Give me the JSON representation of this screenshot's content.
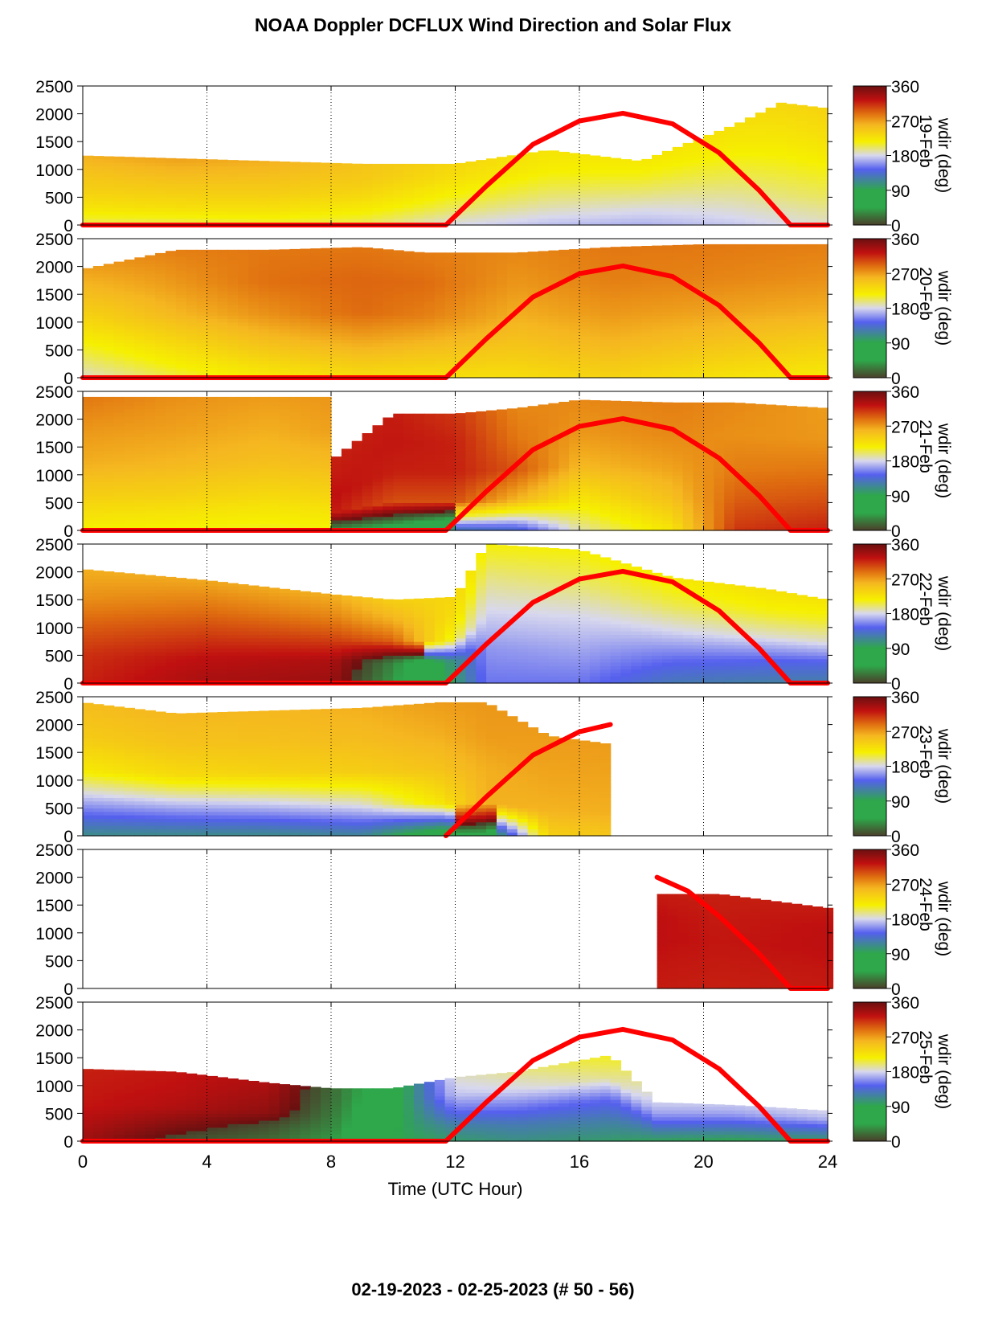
{
  "title": "NOAA Doppler DCFLUX Wind Direction and Solar Flux",
  "footer": "02-19-2023 - 02-25-2023   (# 50 - 56)",
  "chart_data": {
    "type": "heatmap",
    "xlabel": "Time (UTC Hour)",
    "xlim": [
      0,
      24
    ],
    "xticks": [
      0,
      4,
      8,
      12,
      16,
      20,
      24
    ],
    "ylim": [
      0,
      2500
    ],
    "yticks": [
      0,
      500,
      1000,
      1500,
      2000,
      2500
    ],
    "grid": "vertical dotted lines at 4, 8, 12, 16, 20",
    "colorbar": {
      "label": "wdir (deg)",
      "ticks": [
        0,
        90,
        180,
        270,
        360
      ],
      "colors": [
        "#4a3f2a",
        "#2ea84a",
        "#5560ee",
        "#d8d8ee",
        "#f6f000",
        "#f5b720",
        "#e07010",
        "#c01010",
        "#6a1010"
      ]
    },
    "solar_flux_color": "#ff0000",
    "panels": [
      {
        "date": "19-Feb",
        "data_range": [
          0,
          24
        ],
        "solar_curve": [
          [
            0,
            0
          ],
          [
            11.7,
            0
          ],
          [
            13,
            700
          ],
          [
            14.5,
            1450
          ],
          [
            16,
            1870
          ],
          [
            17.4,
            2010
          ],
          [
            19,
            1820
          ],
          [
            20.5,
            1300
          ],
          [
            21.8,
            620
          ],
          [
            22.8,
            0
          ],
          [
            24,
            0
          ]
        ],
        "profile": [
          {
            "t": 0,
            "top": 1250,
            "dirs": [
              200,
              225,
              240,
              250,
              262
            ]
          },
          {
            "t": 3,
            "top": 1200,
            "dirs": [
              200,
              228,
              242,
              255,
              268
            ]
          },
          {
            "t": 6,
            "top": 1150,
            "dirs": [
              205,
              228,
              242,
              252,
              262
            ]
          },
          {
            "t": 9,
            "top": 1100,
            "dirs": [
              200,
              220,
              235,
              245,
              250
            ]
          },
          {
            "t": 12,
            "top": 1100,
            "dirs": [
              180,
              200,
              215,
              228,
              235
            ]
          },
          {
            "t": 15,
            "top": 1350,
            "dirs": [
              172,
              190,
              205,
              218,
              225
            ]
          },
          {
            "t": 18,
            "top": 1150,
            "dirs": [
              168,
              182,
              198,
              212,
              222
            ]
          },
          {
            "t": 21,
            "top": 1800,
            "dirs": [
              175,
              190,
              205,
              218,
              228
            ]
          },
          {
            "t": 22.5,
            "top": 2200,
            "dirs": [
              180,
              198,
              212,
              225,
              235
            ]
          },
          {
            "t": 24,
            "top": 2100,
            "dirs": [
              185,
              202,
              215,
              228,
              238
            ]
          }
        ]
      },
      {
        "date": "20-Feb",
        "data_range": [
          0,
          24
        ],
        "solar_curve": [
          [
            0,
            0
          ],
          [
            11.7,
            0
          ],
          [
            13,
            700
          ],
          [
            14.5,
            1450
          ],
          [
            16,
            1870
          ],
          [
            17.4,
            2010
          ],
          [
            19,
            1820
          ],
          [
            20.5,
            1300
          ],
          [
            21.8,
            620
          ],
          [
            22.8,
            0
          ],
          [
            24,
            0
          ]
        ],
        "profile": [
          {
            "t": 0,
            "top": 1950,
            "dirs": [
              185,
              208,
              232,
              252,
              268
            ]
          },
          {
            "t": 3,
            "top": 2300,
            "dirs": [
              205,
              232,
              258,
              272,
              282
            ]
          },
          {
            "t": 6,
            "top": 2300,
            "dirs": [
              220,
              250,
              275,
              288,
              285
            ]
          },
          {
            "t": 9,
            "top": 2350,
            "dirs": [
              230,
              262,
              290,
              292,
              285
            ]
          },
          {
            "t": 11,
            "top": 2250,
            "dirs": [
              228,
              255,
              282,
              290,
              283
            ]
          },
          {
            "t": 14,
            "top": 2250,
            "dirs": [
              230,
              248,
              262,
              272,
              278
            ]
          },
          {
            "t": 17,
            "top": 2350,
            "dirs": [
              238,
              258,
              272,
              282,
              285
            ]
          },
          {
            "t": 20,
            "top": 2400,
            "dirs": [
              228,
              250,
              268,
              280,
              285
            ]
          },
          {
            "t": 24,
            "top": 2400,
            "dirs": [
              220,
              240,
              262,
              275,
              282
            ]
          }
        ]
      },
      {
        "date": "21-Feb",
        "data_range": [
          0,
          24
        ],
        "solar_curve": [
          [
            0,
            0
          ],
          [
            11.7,
            0
          ],
          [
            13,
            700
          ],
          [
            14.5,
            1450
          ],
          [
            16,
            1870
          ],
          [
            17.4,
            2010
          ],
          [
            19,
            1820
          ],
          [
            20.5,
            1300
          ],
          [
            21.8,
            620
          ],
          [
            22.8,
            0
          ],
          [
            24,
            0
          ]
        ],
        "profile": [
          {
            "t": 0,
            "top": 2400,
            "dirs": [
              215,
              240,
              262,
              272,
              285
            ]
          },
          {
            "t": 3,
            "top": 2400,
            "dirs": [
              212,
              238,
              258,
              268,
              275
            ]
          },
          {
            "t": 6,
            "top": 2400,
            "dirs": [
              210,
              232,
              252,
              262,
              270
            ]
          },
          {
            "t": 7.9,
            "top": 2400,
            "dirs": [
              212,
              235,
              255,
              268,
              272
            ]
          },
          {
            "t": 8.1,
            "top": 1300,
            "dirs": [
              40,
              320,
              325,
              320,
              318
            ]
          },
          {
            "t": 10,
            "top": 2100,
            "dirs": [
              70,
              300,
              318,
              322,
              320
            ]
          },
          {
            "t": 12,
            "top": 2100,
            "dirs": [
              120,
              300,
              318,
              318,
              310
            ]
          },
          {
            "t": 14,
            "top": 2200,
            "dirs": [
              130,
              258,
              298,
              285,
              278
            ]
          },
          {
            "t": 16,
            "top": 2350,
            "dirs": [
              190,
              225,
              258,
              272,
              278
            ]
          },
          {
            "t": 19,
            "top": 2300,
            "dirs": [
              225,
              252,
              268,
              278,
              282
            ]
          },
          {
            "t": 21,
            "top": 2300,
            "dirs": [
              310,
              295,
              282,
              275,
              278
            ]
          },
          {
            "t": 24,
            "top": 2200,
            "dirs": [
              318,
              300,
              285,
              272,
              270
            ]
          }
        ]
      },
      {
        "date": "22-Feb",
        "data_range": [
          0,
          24
        ],
        "solar_curve": [
          [
            0,
            0
          ],
          [
            11.7,
            0
          ],
          [
            13,
            700
          ],
          [
            14.5,
            1450
          ],
          [
            16,
            1870
          ],
          [
            17.4,
            2010
          ],
          [
            19,
            1820
          ],
          [
            20.5,
            1300
          ],
          [
            21.8,
            620
          ],
          [
            22.8,
            0
          ],
          [
            24,
            0
          ]
        ],
        "profile": [
          {
            "t": 0,
            "top": 2050,
            "dirs": [
              318,
              312,
              295,
              275,
              262
            ]
          },
          {
            "t": 4,
            "top": 1850,
            "dirs": [
              335,
              325,
              305,
              285,
              265
            ]
          },
          {
            "t": 8,
            "top": 1600,
            "dirs": [
              340,
              332,
              305,
              280,
              262
            ]
          },
          {
            "t": 10,
            "top": 1500,
            "dirs": [
              40,
              30,
              295,
              262,
              240
            ]
          },
          {
            "t": 12,
            "top": 1550,
            "dirs": [
              100,
              110,
              205,
              228,
              235
            ]
          },
          {
            "t": 13,
            "top": 2500,
            "dirs": [
              150,
              160,
              178,
              195,
              215
            ]
          },
          {
            "t": 16,
            "top": 2400,
            "dirs": [
              150,
              165,
              180,
              200,
              215
            ]
          },
          {
            "t": 19,
            "top": 1900,
            "dirs": [
              125,
              150,
              180,
              205,
              222
            ]
          },
          {
            "t": 22,
            "top": 1700,
            "dirs": [
              120,
              145,
              185,
              212,
              228
            ]
          },
          {
            "t": 24,
            "top": 1500,
            "dirs": [
              120,
              142,
              185,
              210,
              225
            ]
          }
        ]
      },
      {
        "date": "23-Feb",
        "data_range": [
          0,
          17
        ],
        "solar_curve": [
          [
            11.7,
            0
          ],
          [
            13,
            700
          ],
          [
            14.5,
            1450
          ],
          [
            16,
            1870
          ],
          [
            17,
            2000
          ]
        ],
        "profile": [
          {
            "t": 0,
            "top": 2400,
            "dirs": [
              110,
              165,
              222,
              245,
              255
            ]
          },
          {
            "t": 3,
            "top": 2200,
            "dirs": [
              110,
              170,
              232,
              250,
              258
            ]
          },
          {
            "t": 6,
            "top": 2250,
            "dirs": [
              110,
              175,
              238,
              252,
              258
            ]
          },
          {
            "t": 9,
            "top": 2300,
            "dirs": [
              115,
              185,
              242,
              255,
              262
            ]
          },
          {
            "t": 11.5,
            "top": 2400,
            "dirs": [
              60,
              225,
              250,
              262,
              270
            ]
          },
          {
            "t": 13,
            "top": 2400,
            "dirs": [
              60,
              262,
              262,
              270,
              272
            ]
          },
          {
            "t": 15,
            "top": 1800,
            "dirs": [
              240,
              260,
              265,
              268,
              270
            ]
          },
          {
            "t": 17,
            "top": 1650,
            "dirs": [
              248,
              262,
              265,
              268,
              270
            ]
          }
        ]
      },
      {
        "date": "24-Feb",
        "data_range": [
          18.5,
          24
        ],
        "solar_curve": [
          [
            18.5,
            2000
          ],
          [
            19.5,
            1750
          ],
          [
            20.5,
            1300
          ],
          [
            21.8,
            620
          ],
          [
            22.8,
            0
          ],
          [
            24,
            0
          ]
        ],
        "profile": [
          {
            "t": 18.5,
            "top": 1700,
            "dirs": [
              320,
              322,
              325,
              325,
              320
            ]
          },
          {
            "t": 20.5,
            "top": 1700,
            "dirs": [
              318,
              320,
              322,
              320,
              318
            ]
          },
          {
            "t": 24,
            "top": 1450,
            "dirs": [
              320,
              322,
              325,
              325,
              320
            ]
          }
        ]
      },
      {
        "date": "25-Feb",
        "data_range": [
          0,
          24
        ],
        "solar_curve": [
          [
            0,
            0
          ],
          [
            11.7,
            0
          ],
          [
            13,
            700
          ],
          [
            14.5,
            1450
          ],
          [
            16,
            1870
          ],
          [
            17.4,
            2010
          ],
          [
            19,
            1820
          ],
          [
            20.5,
            1300
          ],
          [
            21.8,
            620
          ],
          [
            22.8,
            0
          ],
          [
            24,
            0
          ]
        ],
        "profile": [
          {
            "t": 0,
            "top": 1300,
            "dirs": [
              338,
              330,
              322,
              320,
              318
            ]
          },
          {
            "t": 3,
            "top": 1250,
            "dirs": [
              10,
              348,
              330,
              325,
              322
            ]
          },
          {
            "t": 6,
            "top": 1050,
            "dirs": [
              20,
              8,
              345,
              338,
              332
            ]
          },
          {
            "t": 8,
            "top": 950,
            "dirs": [
              40,
              30,
              25,
              20,
              18
            ]
          },
          {
            "t": 10,
            "top": 950,
            "dirs": [
              90,
              88,
              80,
              75,
              70
            ]
          },
          {
            "t": 12,
            "top": 1150,
            "dirs": [
              100,
              120,
              150,
              175,
              185
            ]
          },
          {
            "t": 14,
            "top": 1250,
            "dirs": [
              108,
              125,
              152,
              180,
              195
            ]
          },
          {
            "t": 17,
            "top": 1550,
            "dirs": [
              100,
              122,
              148,
              195,
              212
            ]
          },
          {
            "t": 18.5,
            "top": 700,
            "dirs": [
              95,
              118,
              145,
              165,
              178
            ]
          },
          {
            "t": 21,
            "top": 650,
            "dirs": [
              90,
              115,
              140,
              162,
              175
            ]
          },
          {
            "t": 24,
            "top": 550,
            "dirs": [
              100,
              120,
              145,
              170,
              180
            ]
          }
        ]
      }
    ]
  }
}
